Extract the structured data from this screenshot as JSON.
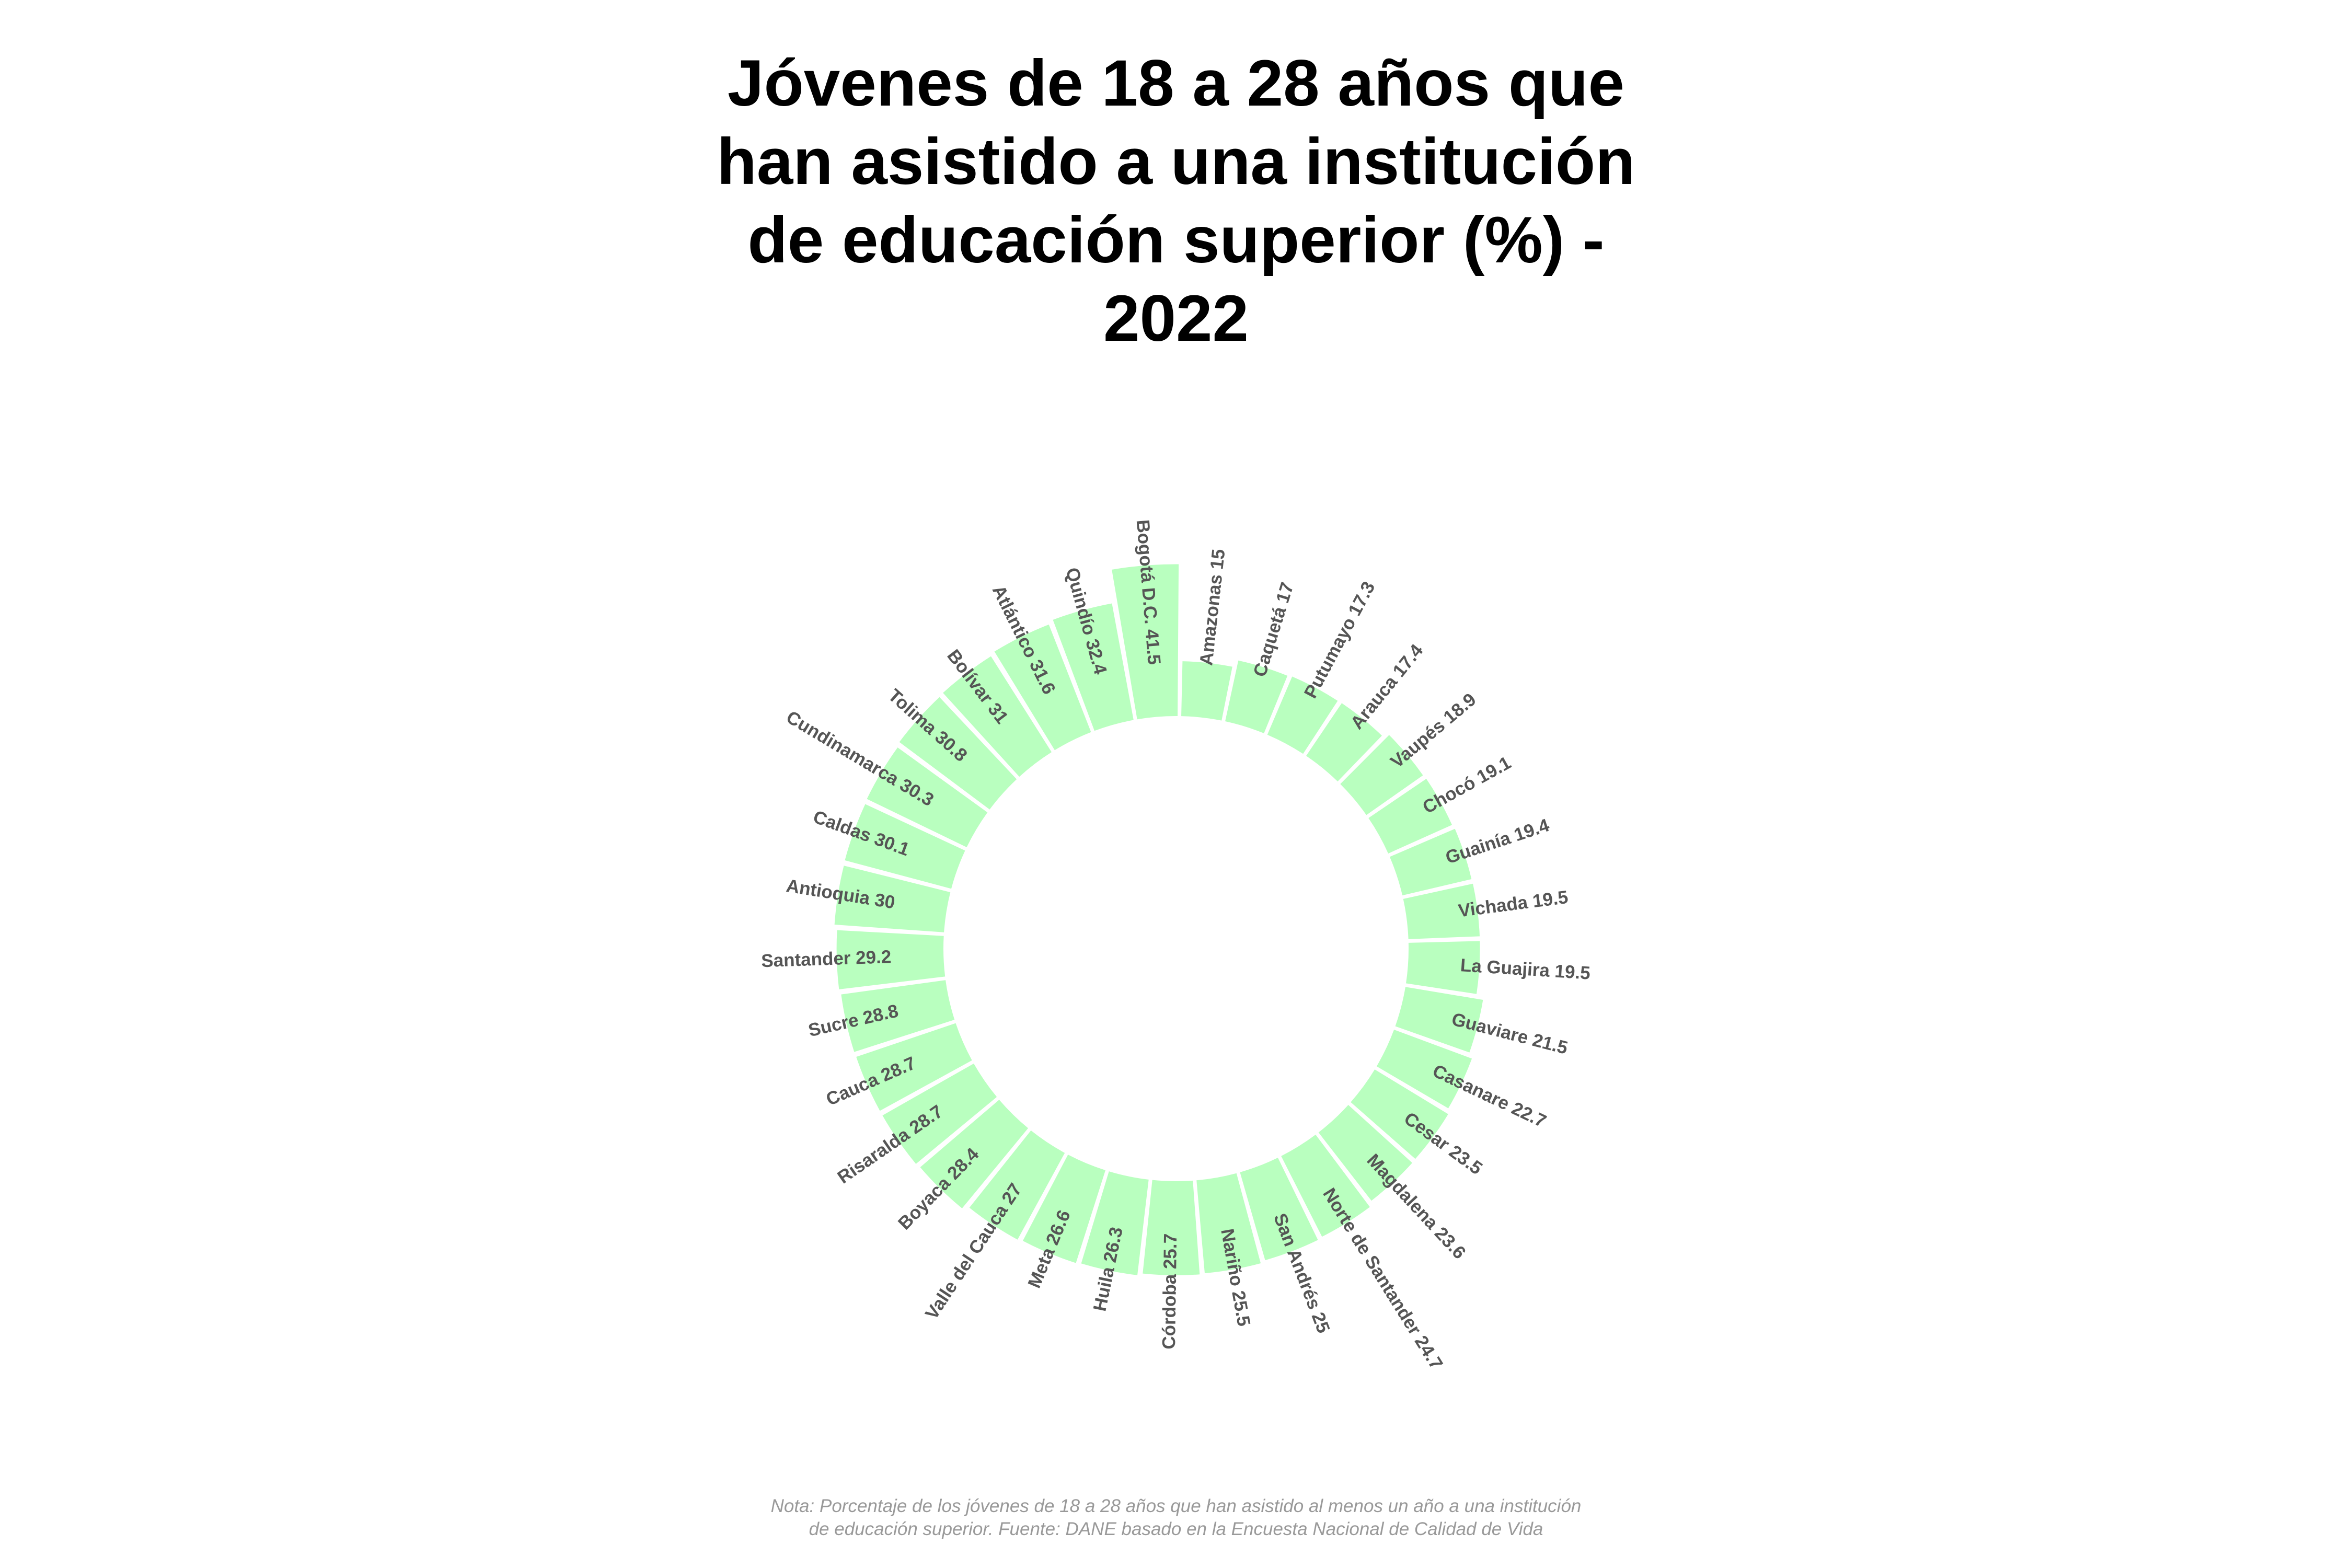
{
  "title_lines": [
    "Jóvenes de 18 a 28 años que",
    "han asistido a una institución",
    "de educación superior (%) -",
    "2022"
  ],
  "note_lines": [
    "Nota: Porcentaje de los jóvenes de 18 a 28 años que han asistido al menos un año a una institución",
    "de educación superior. Fuente: DANE basado en la Encuesta Nacional de Calidad de Vida"
  ],
  "colors": {
    "bar": "#b9ffbf",
    "label": "#555555",
    "title": "#000000",
    "note": "#999999"
  },
  "chart_data": {
    "type": "bar",
    "layout": "radial",
    "title": "Jóvenes de 18 a 28 años que han asistido a una institución de educación superior (%) - 2022",
    "categories": [
      "Amazonas",
      "Caquetá",
      "Putumayo",
      "Arauca",
      "Vaupés",
      "Chocó",
      "Guainía",
      "Vichada",
      "La Guajira",
      "Guaviare",
      "Casanare",
      "Cesar",
      "Magdalena",
      "Norte de Santander",
      "San Andrés",
      "Nariño",
      "Córdoba",
      "Huila",
      "Meta",
      "Valle del Cauca",
      "Boyacá",
      "Risaralda",
      "Cauca",
      "Sucre",
      "Santander",
      "Antioquia",
      "Caldas",
      "Cundinamarca",
      "Tolima",
      "Bolívar",
      "Atlántico",
      "Quindío",
      "Bogotá D.C."
    ],
    "values": [
      15,
      17,
      17.3,
      17.4,
      18.9,
      19.1,
      19.4,
      19.5,
      19.5,
      21.5,
      22.7,
      23.5,
      23.6,
      24.7,
      25,
      25.5,
      25.7,
      26.3,
      26.6,
      27,
      28.4,
      28.7,
      28.7,
      28.8,
      29.2,
      30,
      30.1,
      30.3,
      30.8,
      31,
      31.6,
      32.4,
      41.5
    ],
    "labels": [
      "Amazonas 15",
      "Caquetá 17",
      "Putumayo 17.3",
      "Arauca 17.4",
      "Vaupés 18.9",
      "Chocó 19.1",
      "Guainía 19.4",
      "Vichada 19.5",
      "La Guajira 19.5",
      "Guaviare 21.5",
      "Casanare 22.7",
      "Cesar 23.5",
      "Magdalena 23.6",
      "Norte de Santander 24.7",
      "San Andrés 25",
      "Nariño 25.5",
      "Córdoba 25.7",
      "Huila 26.3",
      "Meta 26.6",
      "Valle del Cauca 27",
      "Boyaca 28.4",
      "Risaralda 28.7",
      "Cauca 28.7",
      "Sucre 28.8",
      "Santander 29.2",
      "Antioquia 30",
      "Caldas 30.1",
      "Cundinamarca 30.3",
      "Tolima 30.8",
      "Bolívar 31",
      "Atlántico 31.6",
      "Quindío 32.4",
      "Bogotá D.C. 41.5"
    ],
    "ylim": [
      0,
      41.5
    ],
    "direction": "clockwise from top",
    "grid": false,
    "legend": "none"
  }
}
